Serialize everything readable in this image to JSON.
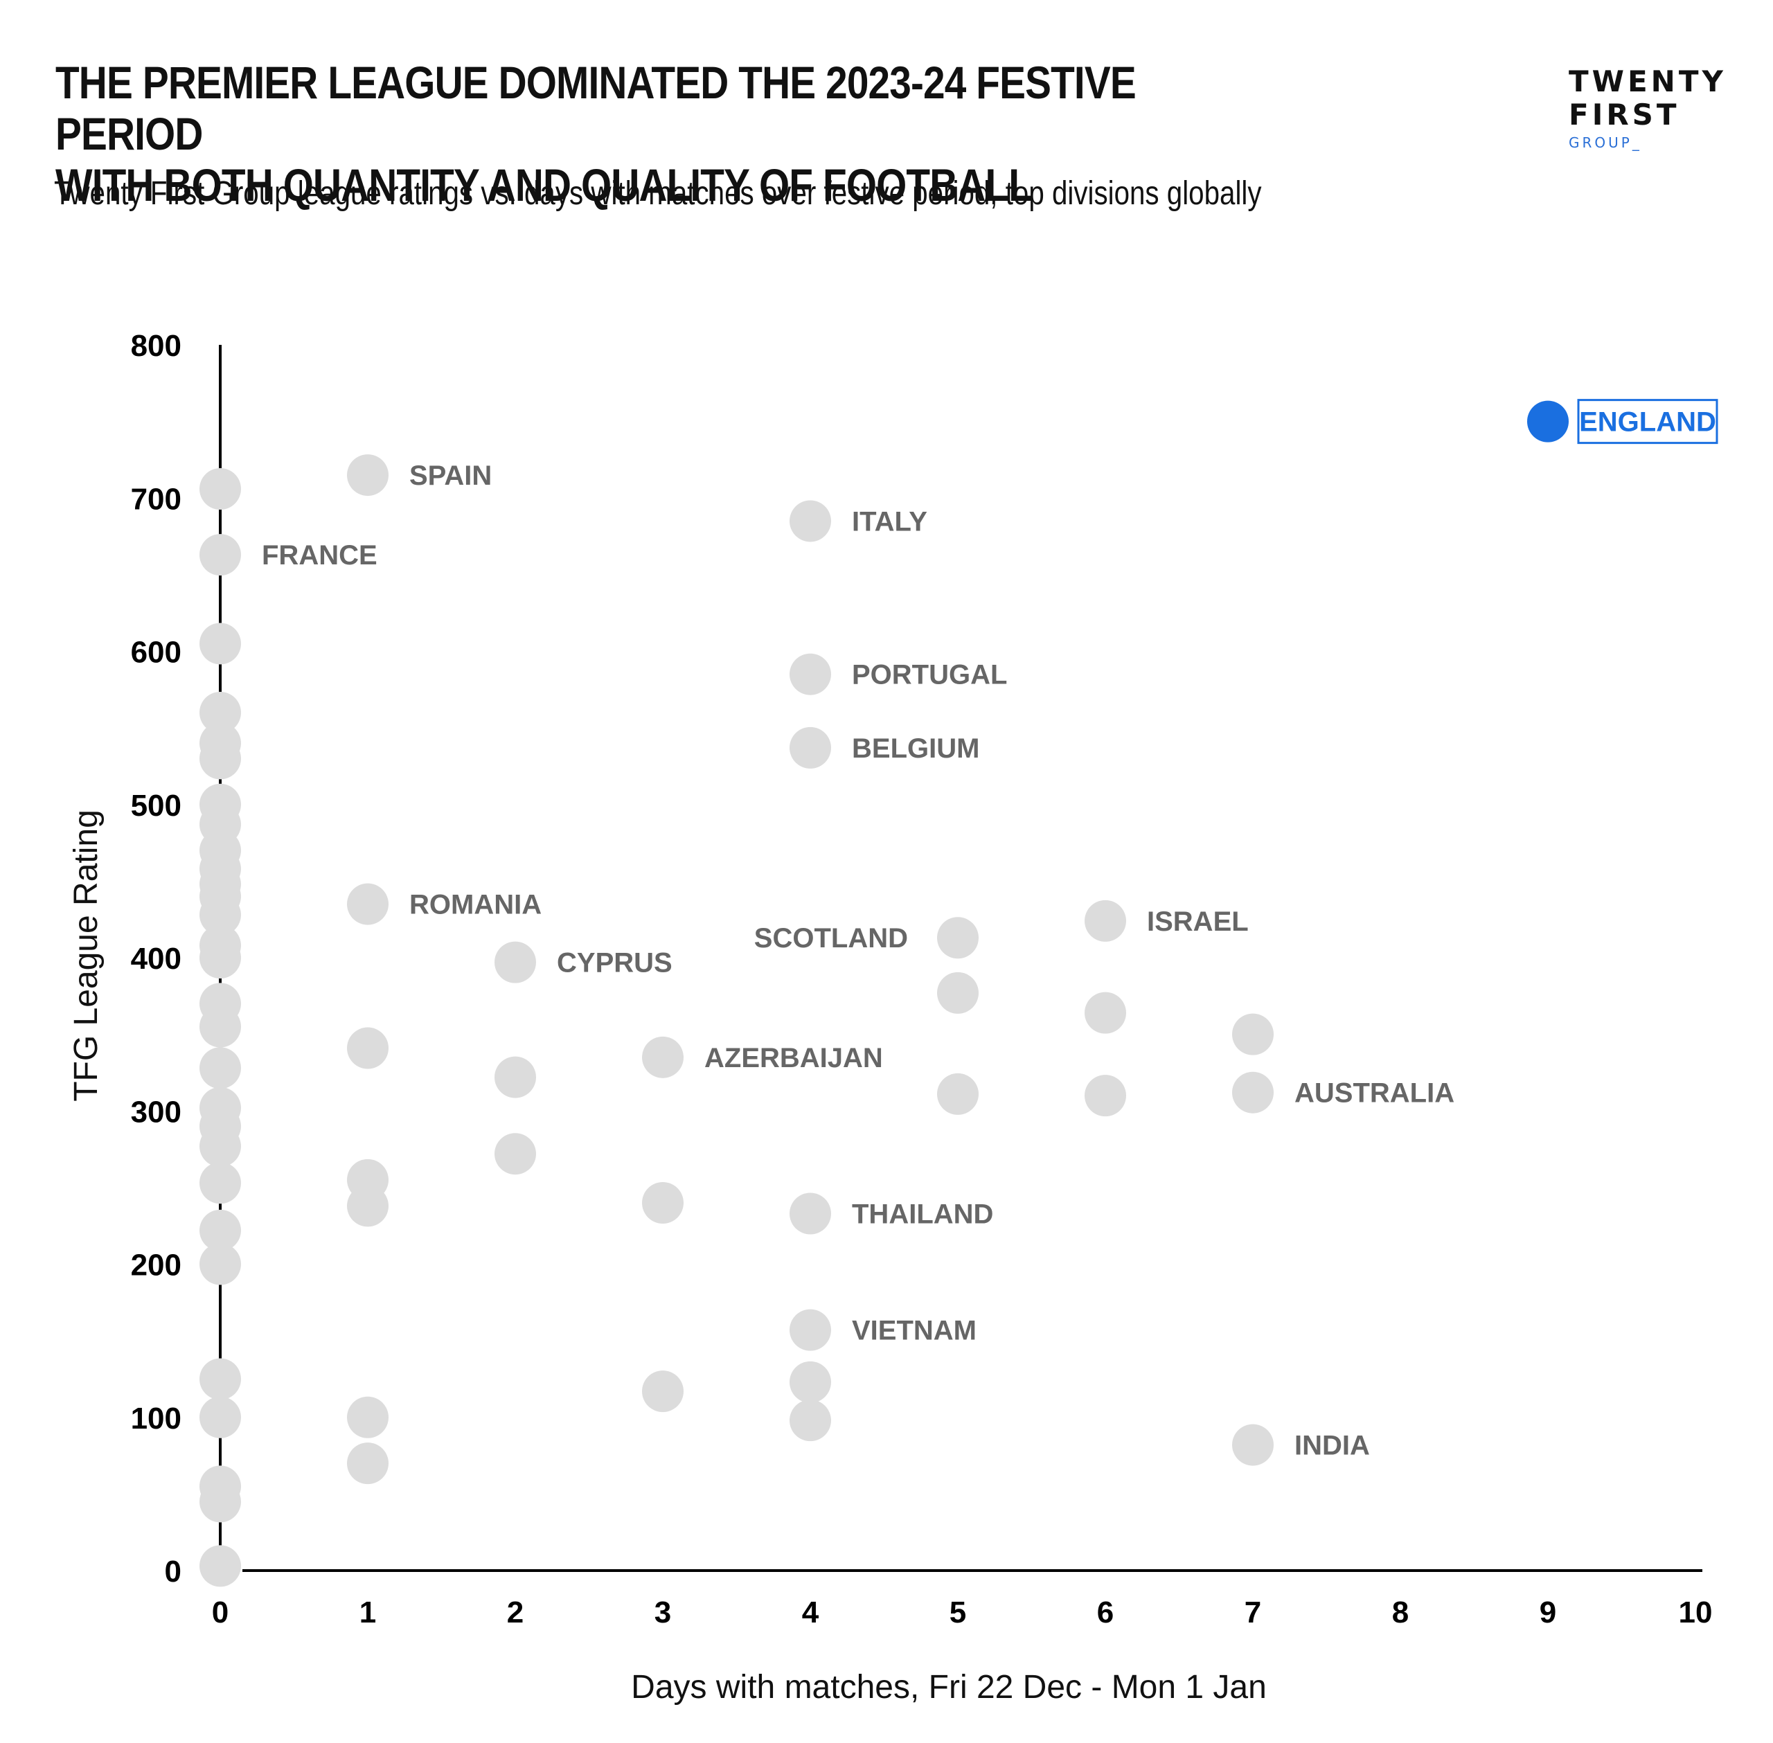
{
  "header": {
    "title_line1": "THE PREMIER LEAGUE DOMINATED THE 2023-24 FESTIVE PERIOD",
    "title_line2": "WITH BOTH QUANTITY AND QUALITY OF FOOTBALL",
    "subtitle": "Twenty First Group league ratings vs. days with matches over festive period, top divisions globally"
  },
  "logo": {
    "line1": "TWENTY",
    "line2": "FIRST",
    "line3": "GROUP_"
  },
  "chart_data": {
    "type": "scatter",
    "xlabel": "Days with matches, Fri 22 Dec - Mon 1 Jan",
    "ylabel": "TFG League Rating",
    "xlim": [
      0,
      10
    ],
    "ylim": [
      0,
      800
    ],
    "xticks": [
      0,
      1,
      2,
      3,
      4,
      5,
      6,
      7,
      8,
      9,
      10
    ],
    "yticks": [
      0,
      100,
      200,
      300,
      400,
      500,
      600,
      700,
      800
    ],
    "grid": false,
    "colors": {
      "default": "#dcdcdc",
      "highlight": "#1a6fe0",
      "label": "#666666"
    },
    "points": [
      {
        "x": 9,
        "y": 750,
        "label": "ENGLAND",
        "highlight": true
      },
      {
        "x": 1,
        "y": 715,
        "label": "SPAIN"
      },
      {
        "x": 0,
        "y": 706
      },
      {
        "x": 4,
        "y": 685,
        "label": "ITALY"
      },
      {
        "x": 0,
        "y": 663,
        "label": "FRANCE"
      },
      {
        "x": 0,
        "y": 605
      },
      {
        "x": 4,
        "y": 585,
        "label": "PORTUGAL"
      },
      {
        "x": 0,
        "y": 560
      },
      {
        "x": 0,
        "y": 540
      },
      {
        "x": 4,
        "y": 537,
        "label": "BELGIUM"
      },
      {
        "x": 0,
        "y": 530
      },
      {
        "x": 0,
        "y": 500
      },
      {
        "x": 0,
        "y": 487
      },
      {
        "x": 0,
        "y": 470
      },
      {
        "x": 0,
        "y": 458
      },
      {
        "x": 0,
        "y": 448
      },
      {
        "x": 0,
        "y": 440
      },
      {
        "x": 1,
        "y": 435,
        "label": "ROMANIA"
      },
      {
        "x": 0,
        "y": 428
      },
      {
        "x": 6,
        "y": 424,
        "label": "ISRAEL"
      },
      {
        "x": 5,
        "y": 413,
        "label": "SCOTLAND",
        "label_side": "left"
      },
      {
        "x": 0,
        "y": 408
      },
      {
        "x": 0,
        "y": 400
      },
      {
        "x": 2,
        "y": 397,
        "label": "CYPRUS"
      },
      {
        "x": 5,
        "y": 377
      },
      {
        "x": 0,
        "y": 370
      },
      {
        "x": 6,
        "y": 364
      },
      {
        "x": 0,
        "y": 355
      },
      {
        "x": 7,
        "y": 350
      },
      {
        "x": 1,
        "y": 341
      },
      {
        "x": 3,
        "y": 335,
        "label": "AZERBAIJAN"
      },
      {
        "x": 0,
        "y": 328
      },
      {
        "x": 2,
        "y": 322
      },
      {
        "x": 5,
        "y": 311
      },
      {
        "x": 7,
        "y": 312,
        "label": "AUSTRALIA"
      },
      {
        "x": 6,
        "y": 310
      },
      {
        "x": 0,
        "y": 302
      },
      {
        "x": 0,
        "y": 290
      },
      {
        "x": 0,
        "y": 277
      },
      {
        "x": 2,
        "y": 272
      },
      {
        "x": 1,
        "y": 255
      },
      {
        "x": 0,
        "y": 253
      },
      {
        "x": 3,
        "y": 240
      },
      {
        "x": 1,
        "y": 238
      },
      {
        "x": 4,
        "y": 233,
        "label": "THAILAND"
      },
      {
        "x": 0,
        "y": 222
      },
      {
        "x": 0,
        "y": 200
      },
      {
        "x": 4,
        "y": 157,
        "label": "VIETNAM"
      },
      {
        "x": 0,
        "y": 125
      },
      {
        "x": 4,
        "y": 123
      },
      {
        "x": 3,
        "y": 117
      },
      {
        "x": 0,
        "y": 100
      },
      {
        "x": 1,
        "y": 100
      },
      {
        "x": 4,
        "y": 98
      },
      {
        "x": 7,
        "y": 82,
        "label": "INDIA"
      },
      {
        "x": 1,
        "y": 70
      },
      {
        "x": 0,
        "y": 55
      },
      {
        "x": 0,
        "y": 45
      },
      {
        "x": 0,
        "y": 3
      }
    ]
  }
}
